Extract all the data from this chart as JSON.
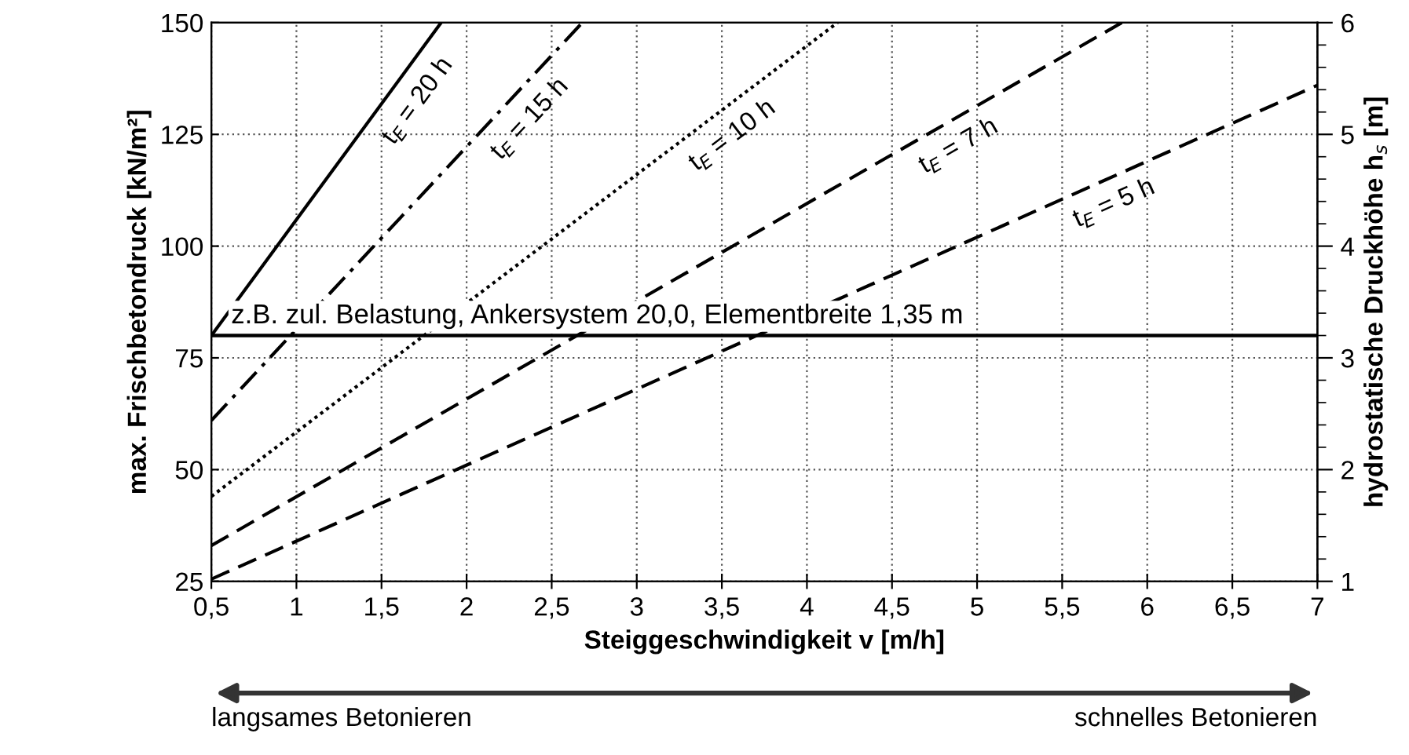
{
  "chart_data": {
    "type": "line",
    "xlabel": "Steiggeschwindigkeit v [m/h]",
    "ylabel": "max. Frischbetondruck [kN/m²]",
    "y2label": "hydrostatische Druckhöhe h$_{s}$ [m]",
    "xlim": [
      0.5,
      7
    ],
    "xticks": [
      {
        "value": 0.5,
        "label": "0,5"
      },
      1,
      {
        "value": 1.5,
        "label": "1,5"
      },
      2,
      {
        "value": 2.5,
        "label": "2,5"
      },
      3,
      {
        "value": 3.5,
        "label": "3,5"
      },
      4,
      {
        "value": 4.5,
        "label": "4,5"
      },
      5,
      {
        "value": 5.5,
        "label": "5,5"
      },
      6,
      {
        "value": 6.5,
        "label": "6,5"
      },
      7
    ],
    "ylim": [
      25,
      150
    ],
    "yticks": [
      25,
      50,
      75,
      100,
      125,
      150
    ],
    "y2lim": [
      1,
      6
    ],
    "y2ticks": [
      1,
      2,
      3,
      4,
      5,
      6
    ],
    "grid": true,
    "series": [
      {
        "name": "t$_{E}$ = 20 h",
        "color": "#000000",
        "line_style": "solid",
        "x": [
          0.5,
          1.85
        ],
        "values": [
          80,
          150
        ]
      },
      {
        "name": "t$_{E}$ = 15 h",
        "color": "#000000",
        "line_style": "dashdot",
        "x": [
          0.5,
          2.68
        ],
        "values": [
          61,
          150
        ]
      },
      {
        "name": "t$_{E}$ = 10 h",
        "color": "#000000",
        "line_style": "dotted",
        "x": [
          0.5,
          4.18
        ],
        "values": [
          44,
          150
        ]
      },
      {
        "name": "t$_{E}$ = 7 h",
        "color": "#000000",
        "line_style": "dashed",
        "x": [
          0.5,
          5.85
        ],
        "values": [
          33,
          150
        ]
      },
      {
        "name": "t$_{E}$ = 5 h",
        "color": "#000000",
        "line_style": "dashed",
        "x": [
          0.5,
          7
        ],
        "values": [
          25.5,
          136
        ]
      }
    ],
    "ref_lines": [
      {
        "axis": "y",
        "value": 80,
        "label": "z.B. zul. Belastung, Ankersystem 20,0, Elementbreite 1,35 m",
        "color": "#000000",
        "line_style": "solid"
      }
    ],
    "annotations": [
      "langsames Betonieren",
      "schnelles Betonieren"
    ]
  }
}
